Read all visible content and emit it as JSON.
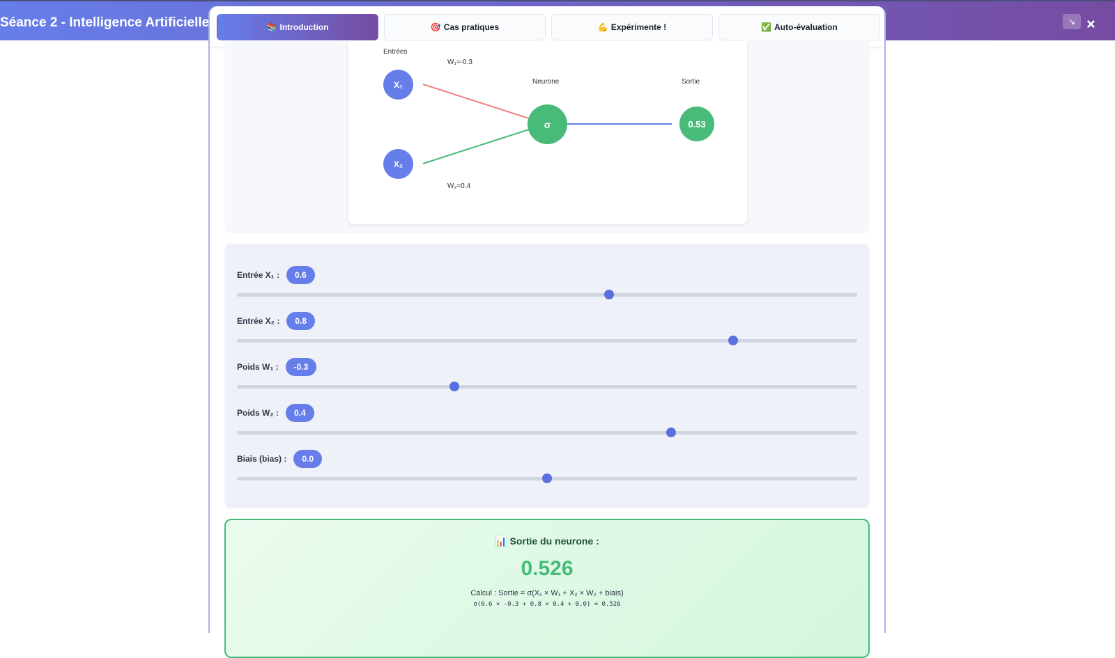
{
  "header": {
    "title": "Séance 2 - Intelligence Artificielle :",
    "expand_icon": "↘",
    "close_icon": "×"
  },
  "tabs": [
    {
      "icon": "📚",
      "label": "Introduction",
      "active": true
    },
    {
      "icon": "🎯",
      "label": "Cas pratiques"
    },
    {
      "icon": "💪",
      "label": "Expérimente !"
    },
    {
      "icon": "✅",
      "label": "Auto-évaluation"
    }
  ],
  "diagram": {
    "inputs_label": "Entrées",
    "neuron_label": "Neurone",
    "output_label": "Sortie",
    "x1": "X₁",
    "x2": "X₂",
    "w1": "W₁=-0.3",
    "w2": "W₂=0.4",
    "sigma": "σ",
    "output": "0.53",
    "colors": {
      "input": "#667eea",
      "neuron": "#48bb78",
      "w1_line": "#f08080",
      "w2_line": "#48bb78",
      "out_line": "#667eea"
    }
  },
  "sliders": [
    {
      "label": "Entrée X₁ :",
      "value": "0.6",
      "num": 0.6,
      "min": 0,
      "max": 1
    },
    {
      "label": "Entrée X₂ :",
      "value": "0.8",
      "num": 0.8,
      "min": 0,
      "max": 1
    },
    {
      "label": "Poids W₁ :",
      "value": "-0.3",
      "num": -0.3,
      "min": -1,
      "max": 1
    },
    {
      "label": "Poids W₂ :",
      "value": "0.4",
      "num": 0.4,
      "min": -1,
      "max": 1
    },
    {
      "label": "Biais (bias) :",
      "value": "0.0",
      "num": 0,
      "min": -1,
      "max": 1
    }
  ],
  "result": {
    "icon": "📊",
    "title": "Sortie du neurone :",
    "value": "0.526",
    "calc": "Calcul : Sortie = σ(X₁ × W₁ + X₂ × W₂ + biais)",
    "detail": "σ(0.6 × -0.3 + 0.8 × 0.4 + 0.0) = 0.526"
  }
}
